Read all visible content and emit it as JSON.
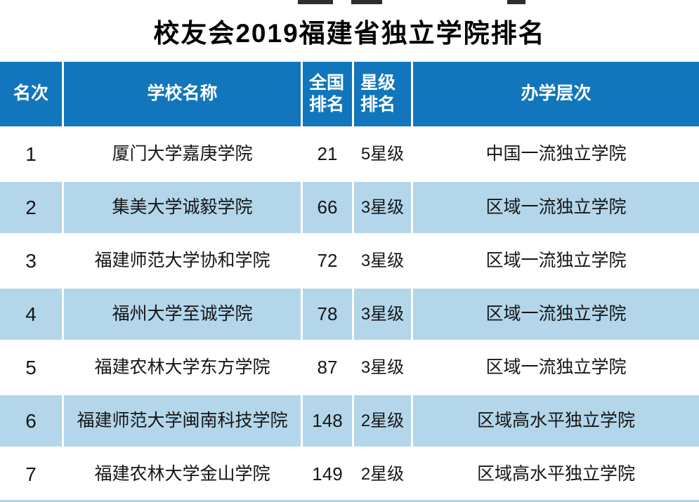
{
  "page": {
    "title": "校友会2019福建省独立学院排名"
  },
  "colors": {
    "header_bg": "#1176BC",
    "header_text": "#FFFFFF",
    "alt_row_bg": "#B3D6EA",
    "row_bg": "#FFFFFF",
    "body_text": "#161616"
  },
  "header": {
    "rank": "名次",
    "school": "学校名称",
    "national": "全国\n排名",
    "star": "星级\n排名",
    "level": "办学层次"
  },
  "chart_data": {
    "type": "table",
    "title": "校友会2019福建省独立学院排名",
    "columns": [
      "名次",
      "学校名称",
      "全国排名",
      "星级排名",
      "办学层次"
    ],
    "rows": [
      [
        "1",
        "厦门大学嘉庚学院",
        "21",
        "5星级",
        "中国一流独立学院"
      ],
      [
        "2",
        "集美大学诚毅学院",
        "66",
        "3星级",
        "区域一流独立学院"
      ],
      [
        "3",
        "福建师范大学协和学院",
        "72",
        "3星级",
        "区域一流独立学院"
      ],
      [
        "4",
        "福州大学至诚学院",
        "78",
        "3星级",
        "区域一流独立学院"
      ],
      [
        "5",
        "福建农林大学东方学院",
        "87",
        "3星级",
        "区域一流独立学院"
      ],
      [
        "6",
        "福建师范大学闽南科技学院",
        "148",
        "2星级",
        "区域高水平独立学院"
      ],
      [
        "7",
        "福建农林大学金山学院",
        "149",
        "2星级",
        "区域高水平独立学院"
      ]
    ]
  }
}
